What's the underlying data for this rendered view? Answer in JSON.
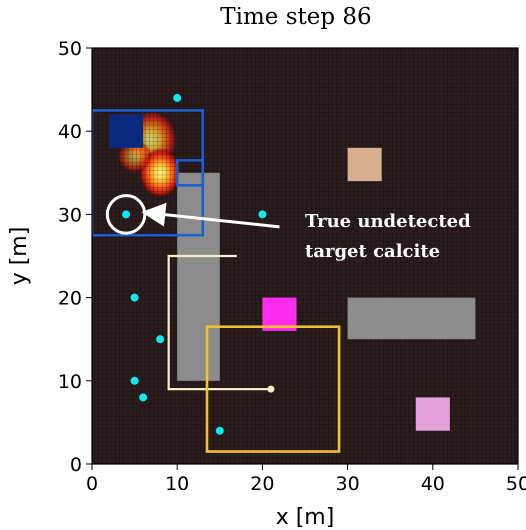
{
  "chart_data": {
    "type": "heatmap",
    "title": "Time step 86",
    "xlabel": "x [m]",
    "ylabel": "y [m]",
    "xlim": [
      0,
      50
    ],
    "ylim": [
      0,
      50
    ],
    "xticks": [
      "0",
      "10",
      "20",
      "30",
      "40",
      "50"
    ],
    "yticks": [
      "0",
      "10",
      "20",
      "30",
      "40",
      "50"
    ],
    "grid": true,
    "background_color": "#2b1d1d",
    "heat_blobs": [
      {
        "cx": 7,
        "cy": 39,
        "rx": 3,
        "ry": 3.5,
        "intensity": 0.8
      },
      {
        "cx": 8,
        "cy": 35,
        "rx": 2.5,
        "ry": 3,
        "intensity": 1.0
      },
      {
        "cx": 5,
        "cy": 37,
        "rx": 2,
        "ry": 2,
        "intensity": 0.6
      }
    ],
    "obstacles": [
      {
        "x0": 10,
        "x1": 15,
        "y0": 10,
        "y1": 35,
        "color": "#8c8c8c"
      },
      {
        "x0": 30,
        "x1": 45,
        "y0": 15,
        "y1": 20,
        "color": "#8c8c8c"
      }
    ],
    "targets": [
      {
        "x0": 2,
        "x1": 6,
        "y0": 38,
        "y1": 42,
        "color": "#0a2a80"
      },
      {
        "x0": 30,
        "x1": 34,
        "y0": 34,
        "y1": 38,
        "color": "#d8b090"
      },
      {
        "x0": 20,
        "x1": 24,
        "y0": 16,
        "y1": 20,
        "color": "#ff2cf0"
      },
      {
        "x0": 38,
        "x1": 42,
        "y0": 4,
        "y1": 8,
        "color": "#e6a0dc"
      }
    ],
    "detection_rects": [
      {
        "x0": 0,
        "x1": 13,
        "y0": 27.5,
        "y1": 42.5,
        "color": "#1a5fd0"
      },
      {
        "x0": 10,
        "x1": 13,
        "y0": 33.5,
        "y1": 36.5,
        "color": "#1a5fd0"
      },
      {
        "x0": 13.5,
        "x1": 29,
        "y0": 1.5,
        "y1": 16.5,
        "color": "#f2c12e"
      }
    ],
    "path": [
      [
        9,
        25
      ],
      [
        17,
        25
      ],
      [
        9,
        25
      ],
      [
        9,
        9
      ],
      [
        21,
        9
      ]
    ],
    "path_color": "#f5f0c8",
    "path_end": {
      "x": 21,
      "y": 9
    },
    "points": [
      {
        "x": 10,
        "y": 44
      },
      {
        "x": 4,
        "y": 30
      },
      {
        "x": 20,
        "y": 30
      },
      {
        "x": 5,
        "y": 20
      },
      {
        "x": 8,
        "y": 15
      },
      {
        "x": 5,
        "y": 10
      },
      {
        "x": 6,
        "y": 8
      },
      {
        "x": 15,
        "y": 4
      }
    ],
    "point_color": "#10e8f0",
    "highlight": {
      "x": 4,
      "y": 30,
      "r": 2.2
    },
    "annotation": {
      "lines": [
        "True undetected",
        "target calcite"
      ],
      "text_x": 25,
      "text_y": 28.5,
      "arrow_from": [
        22,
        28.5
      ],
      "arrow_to": [
        6.5,
        30.2
      ]
    }
  }
}
